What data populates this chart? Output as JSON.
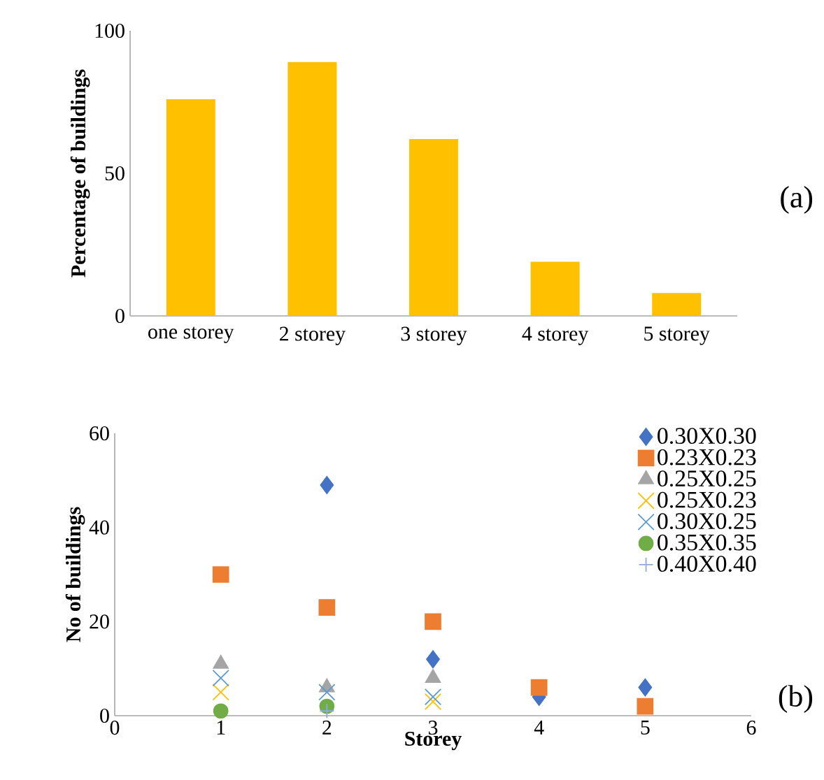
{
  "chart_data": [
    {
      "type": "bar",
      "ylabel": "Percentage of buildings",
      "categories": [
        "one storey",
        "2 storey",
        "3 storey",
        "4 storey",
        "5 storey"
      ],
      "values": [
        76,
        89,
        62,
        19,
        8
      ],
      "color": "#ffc000",
      "ylim": [
        0,
        100
      ],
      "yticks": [
        0,
        50,
        100
      ],
      "grid": false,
      "legend": false,
      "annotations": [
        "(a)"
      ]
    },
    {
      "type": "scatter",
      "xlabel": "Storey",
      "ylabel": "No of buildings",
      "xlim": [
        0,
        6
      ],
      "xticks": [
        0,
        1,
        2,
        3,
        4,
        5,
        6
      ],
      "ylim": [
        0,
        60
      ],
      "yticks": [
        0,
        20,
        40,
        60
      ],
      "grid": false,
      "legend": "top right",
      "annotations": [
        "(b)"
      ],
      "series": [
        {
          "name": "0.30X0.30",
          "color": "#4472c4",
          "marker": "diamond",
          "x": [
            2,
            3,
            4,
            5
          ],
          "values": [
            49,
            12,
            4,
            6
          ]
        },
        {
          "name": "0.23X0.23",
          "color": "#ed7d31",
          "marker": "square",
          "x": [
            1,
            2,
            3,
            4,
            5
          ],
          "values": [
            30,
            23,
            20,
            6,
            2
          ]
        },
        {
          "name": "0.25X0.25",
          "color": "#a5a5a5",
          "marker": "triangle",
          "x": [
            1,
            2,
            3
          ],
          "values": [
            11,
            6,
            8
          ]
        },
        {
          "name": "0.25X0.23",
          "color": "#ffc000",
          "marker": "cross",
          "x": [
            1,
            2,
            3
          ],
          "values": [
            5,
            null,
            3
          ]
        },
        {
          "name": "0.30X0.25",
          "color": "#5b9bd5",
          "marker": "cross",
          "x": [
            1,
            2,
            3
          ],
          "values": [
            8,
            5,
            4
          ]
        },
        {
          "name": "0.35X0.35",
          "color": "#70ad47",
          "marker": "circle",
          "x": [
            1,
            2
          ],
          "values": [
            1,
            2
          ]
        },
        {
          "name": "0.40X0.40",
          "color": "#8faadc",
          "marker": "plus",
          "x": [
            2
          ],
          "values": [
            1
          ]
        }
      ]
    }
  ]
}
